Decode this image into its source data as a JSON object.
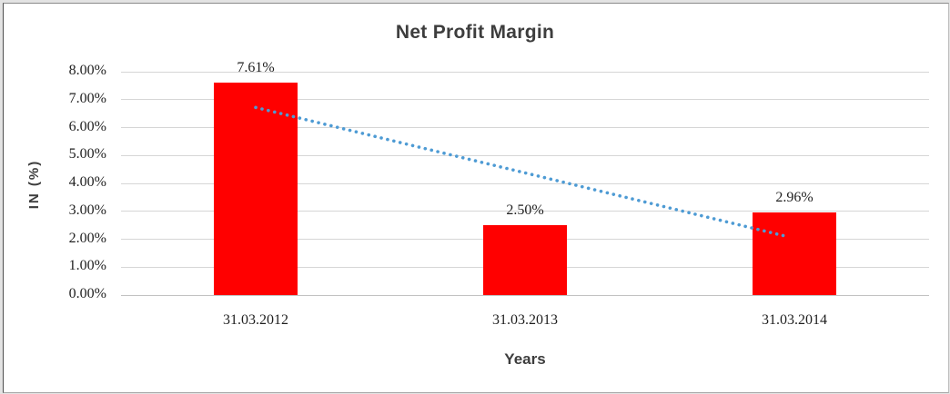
{
  "chart_data": {
    "type": "bar",
    "title": "Net Profit Margin",
    "xlabel": "Years",
    "ylabel": "IN (%)",
    "categories": [
      "31.03.2012",
      "31.03.2013",
      "31.03.2014"
    ],
    "values": [
      7.61,
      2.5,
      2.96
    ],
    "value_labels": [
      "7.61%",
      "2.50%",
      "2.96%"
    ],
    "ylim": [
      0,
      8
    ],
    "ytick_step": 1,
    "ytick_labels": [
      "0.00%",
      "1.00%",
      "2.00%",
      "3.00%",
      "4.00%",
      "5.00%",
      "6.00%",
      "7.00%",
      "8.00%"
    ],
    "grid": true,
    "legend": "none",
    "bar_color": "#FF0000",
    "gridline_color": "#D6D6D6",
    "axisline_color": "#C2C2C2",
    "trendline": {
      "type": "linear",
      "style": "dotted",
      "color": "#4E9BD4",
      "start": {
        "category_position": 0.5,
        "value": 6.72
      },
      "end": {
        "category_position": 2.48,
        "value": 2.08
      }
    }
  }
}
